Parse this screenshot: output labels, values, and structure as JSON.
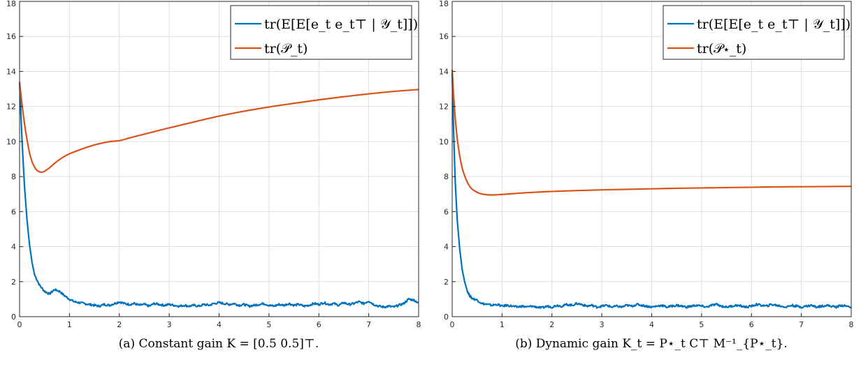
{
  "colors": {
    "measured": "#0072BD",
    "bound": "#D95319"
  },
  "chart_data": [
    {
      "type": "line",
      "panel": "a",
      "caption": "(a) Constant gain K = [0.5 0.5]⊤.",
      "xlim": [
        0,
        8
      ],
      "ylim": [
        0,
        18
      ],
      "xticks": [
        "0",
        "1",
        "2",
        "3",
        "4",
        "5",
        "6",
        "7",
        "8"
      ],
      "yticks": [
        "0",
        "2",
        "4",
        "6",
        "8",
        "10",
        "12",
        "14",
        "16",
        "18"
      ],
      "grid": true,
      "legend_position": "top-right",
      "series": [
        {
          "name": "tr(E[E[e_t e_t⊤ | 𝒴_t]])",
          "color": "#0072BD",
          "noisy": true,
          "x": [
            0,
            0.05,
            0.1,
            0.15,
            0.2,
            0.25,
            0.3,
            0.4,
            0.5,
            0.6,
            0.7,
            0.8,
            0.9,
            1.0,
            1.1,
            1.2,
            1.3,
            1.4,
            1.5,
            1.6,
            1.7,
            1.8,
            1.9,
            2.0,
            2.1,
            2.2,
            2.3,
            2.4,
            2.5,
            2.6,
            2.7,
            2.8,
            2.9,
            3.0,
            3.1,
            3.2,
            3.3,
            3.4,
            3.5,
            3.6,
            3.7,
            3.8,
            3.9,
            4.0,
            4.1,
            4.2,
            4.3,
            4.4,
            4.5,
            4.6,
            4.7,
            4.8,
            4.9,
            5.0,
            5.1,
            5.2,
            5.3,
            5.4,
            5.5,
            5.6,
            5.7,
            5.8,
            5.9,
            6.0,
            6.1,
            6.2,
            6.3,
            6.4,
            6.5,
            6.6,
            6.7,
            6.8,
            6.9,
            7.0,
            7.1,
            7.2,
            7.3,
            7.4,
            7.5,
            7.6,
            7.7,
            7.8,
            7.9,
            8.0
          ],
          "y": [
            13.4,
            10.0,
            7.4,
            5.5,
            4.1,
            3.1,
            2.4,
            1.8,
            1.45,
            1.3,
            1.55,
            1.45,
            1.2,
            1.0,
            0.85,
            0.8,
            0.75,
            0.7,
            0.65,
            0.6,
            0.7,
            0.65,
            0.75,
            0.85,
            0.75,
            0.7,
            0.75,
            0.65,
            0.7,
            0.6,
            0.75,
            0.7,
            0.65,
            0.7,
            0.65,
            0.6,
            0.65,
            0.6,
            0.65,
            0.6,
            0.7,
            0.65,
            0.75,
            0.8,
            0.75,
            0.7,
            0.75,
            0.65,
            0.7,
            0.6,
            0.65,
            0.7,
            0.75,
            0.65,
            0.6,
            0.7,
            0.65,
            0.75,
            0.65,
            0.7,
            0.6,
            0.65,
            0.75,
            0.7,
            0.8,
            0.7,
            0.75,
            0.65,
            0.8,
            0.7,
            0.75,
            0.85,
            0.75,
            0.9,
            0.7,
            0.6,
            0.55,
            0.6,
            0.55,
            0.65,
            0.75,
            1.0,
            0.95,
            0.8
          ]
        },
        {
          "name": "tr(𝒫_t)",
          "color": "#D95319",
          "noisy": false,
          "x": [
            0,
            0.05,
            0.1,
            0.15,
            0.2,
            0.25,
            0.3,
            0.35,
            0.4,
            0.45,
            0.5,
            0.6,
            0.7,
            0.8,
            0.9,
            1.0,
            1.2,
            1.4,
            1.6,
            1.8,
            2.0,
            2.2,
            2.5,
            3.0,
            3.5,
            4.0,
            4.5,
            5.0,
            5.5,
            6.0,
            6.5,
            7.0,
            7.5,
            8.0
          ],
          "y": [
            13.4,
            12.1,
            11.0,
            10.1,
            9.35,
            8.85,
            8.55,
            8.35,
            8.27,
            8.25,
            8.3,
            8.5,
            8.75,
            8.97,
            9.15,
            9.3,
            9.52,
            9.72,
            9.88,
            9.99,
            10.05,
            10.2,
            10.42,
            10.78,
            11.12,
            11.45,
            11.73,
            11.97,
            12.18,
            12.38,
            12.56,
            12.72,
            12.86,
            12.97
          ]
        }
      ]
    },
    {
      "type": "line",
      "panel": "b",
      "caption": "(b) Dynamic gain K_t = P⋆_t C⊤ M⁻¹_{P⋆_t}.",
      "xlim": [
        0,
        8
      ],
      "ylim": [
        0,
        18
      ],
      "xticks": [
        "0",
        "1",
        "2",
        "3",
        "4",
        "5",
        "6",
        "7",
        "8"
      ],
      "yticks": [
        "0",
        "2",
        "4",
        "6",
        "8",
        "10",
        "12",
        "14",
        "16",
        "18"
      ],
      "grid": true,
      "legend_position": "top-right",
      "series": [
        {
          "name": "tr(E[E[e_t e_t⊤ | 𝒴_t]])",
          "color": "#0072BD",
          "noisy": true,
          "x": [
            0,
            0.03,
            0.06,
            0.1,
            0.15,
            0.2,
            0.25,
            0.3,
            0.35,
            0.4,
            0.5,
            0.6,
            0.7,
            0.8,
            0.9,
            1.0,
            1.1,
            1.2,
            1.3,
            1.4,
            1.5,
            1.6,
            1.7,
            1.8,
            1.9,
            2.0,
            2.1,
            2.2,
            2.3,
            2.4,
            2.5,
            2.6,
            2.7,
            2.8,
            2.9,
            3.0,
            3.1,
            3.2,
            3.3,
            3.4,
            3.5,
            3.6,
            3.7,
            3.8,
            3.9,
            4.0,
            4.1,
            4.2,
            4.3,
            4.4,
            4.5,
            4.6,
            4.7,
            4.8,
            4.9,
            5.0,
            5.1,
            5.2,
            5.3,
            5.4,
            5.5,
            5.6,
            5.7,
            5.8,
            5.9,
            6.0,
            6.1,
            6.2,
            6.3,
            6.4,
            6.5,
            6.6,
            6.7,
            6.8,
            6.9,
            7.0,
            7.1,
            7.2,
            7.3,
            7.4,
            7.5,
            7.6,
            7.7,
            7.8,
            7.9,
            8.0
          ],
          "y": [
            13.9,
            10.5,
            7.8,
            5.6,
            3.9,
            2.7,
            2.0,
            1.5,
            1.2,
            1.05,
            0.95,
            0.75,
            0.7,
            0.65,
            0.7,
            0.6,
            0.65,
            0.6,
            0.55,
            0.6,
            0.55,
            0.6,
            0.55,
            0.5,
            0.6,
            0.55,
            0.65,
            0.6,
            0.7,
            0.65,
            0.75,
            0.7,
            0.6,
            0.65,
            0.55,
            0.6,
            0.65,
            0.55,
            0.6,
            0.55,
            0.65,
            0.6,
            0.7,
            0.65,
            0.6,
            0.55,
            0.6,
            0.65,
            0.55,
            0.6,
            0.65,
            0.6,
            0.55,
            0.6,
            0.65,
            0.6,
            0.55,
            0.65,
            0.7,
            0.6,
            0.55,
            0.6,
            0.65,
            0.6,
            0.55,
            0.6,
            0.7,
            0.65,
            0.6,
            0.7,
            0.65,
            0.6,
            0.55,
            0.65,
            0.6,
            0.55,
            0.6,
            0.65,
            0.55,
            0.6,
            0.65,
            0.6,
            0.55,
            0.65,
            0.6,
            0.55
          ]
        },
        {
          "name": "tr(𝒫⋆_t)",
          "color": "#D95319",
          "noisy": false,
          "x": [
            0,
            0.03,
            0.06,
            0.1,
            0.15,
            0.2,
            0.25,
            0.3,
            0.35,
            0.4,
            0.5,
            0.6,
            0.7,
            0.8,
            0.9,
            1.0,
            1.2,
            1.5,
            2.0,
            2.5,
            3.0,
            3.5,
            4.0,
            4.5,
            5.0,
            5.5,
            6.0,
            6.5,
            7.0,
            7.5,
            8.0
          ],
          "y": [
            14.1,
            12.6,
            11.4,
            10.2,
            9.2,
            8.5,
            8.05,
            7.7,
            7.45,
            7.28,
            7.1,
            7.0,
            6.96,
            6.95,
            6.96,
            6.98,
            7.02,
            7.08,
            7.15,
            7.2,
            7.24,
            7.27,
            7.3,
            7.33,
            7.35,
            7.37,
            7.39,
            7.41,
            7.42,
            7.43,
            7.44
          ]
        }
      ]
    }
  ]
}
